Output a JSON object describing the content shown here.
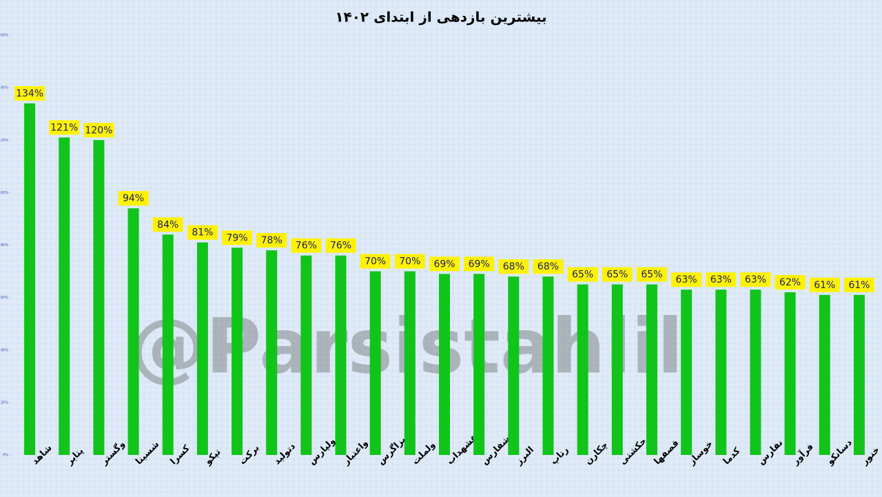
{
  "chart_data": {
    "type": "bar",
    "title": "بیشترین بازدهی از ابتدای ۱۴۰۲",
    "watermark": "@Parsistahlil",
    "categories": [
      "شاهد",
      "پتایر",
      "وگستر",
      "شسینا",
      "کسرا",
      "تپکو",
      "برکت",
      "دتولید",
      "ولپارس",
      "واعتبار",
      "بزاگرس",
      "ولملت",
      "غشهداب",
      "شفارس",
      "البرز",
      "رتاپ",
      "چکارن",
      "حکشتی",
      "قصفها",
      "خوساز",
      "کدما",
      "نفارس",
      "فرآور",
      "دسانکو",
      "خنور"
    ],
    "values": [
      134,
      121,
      120,
      94,
      84,
      81,
      79,
      78,
      76,
      76,
      70,
      70,
      69,
      69,
      68,
      68,
      65,
      65,
      65,
      63,
      63,
      63,
      62,
      61,
      61
    ],
    "value_labels": [
      "134%",
      "121%",
      "120%",
      "94%",
      "84%",
      "81%",
      "79%",
      "78%",
      "76%",
      "76%",
      "70%",
      "70%",
      "69%",
      "69%",
      "68%",
      "68%",
      "65%",
      "65%",
      "65%",
      "63%",
      "63%",
      "63%",
      "62%",
      "61%",
      "61%"
    ],
    "color": "#11c41a",
    "ylim": [
      0,
      160
    ],
    "yticks": [
      {
        "value": 0,
        "label": "0%"
      },
      {
        "value": 20,
        "label": "20%"
      },
      {
        "value": 40,
        "label": "40%"
      },
      {
        "value": 60,
        "label": "60%"
      },
      {
        "value": 80,
        "label": "80%"
      },
      {
        "value": 100,
        "label": "100%"
      },
      {
        "value": 120,
        "label": "120%"
      },
      {
        "value": 140,
        "label": "140%"
      },
      {
        "value": 160,
        "label": "160%"
      }
    ],
    "grid": false
  }
}
